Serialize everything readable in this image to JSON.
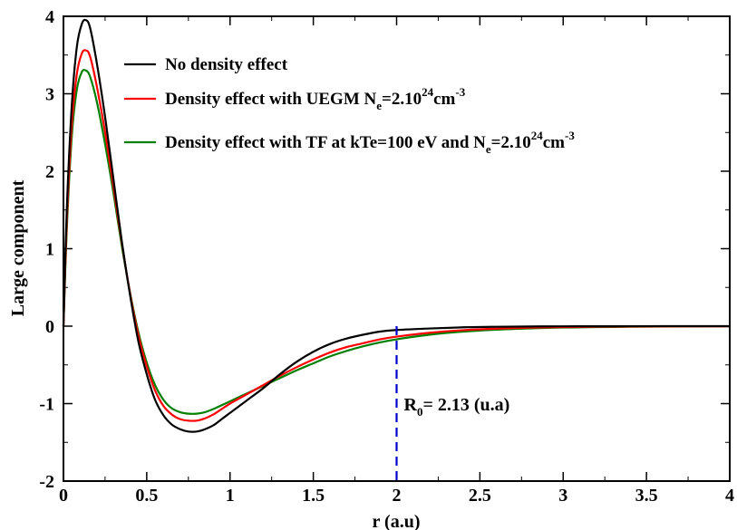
{
  "chart_data": {
    "type": "line",
    "xlabel": "r (a.u)",
    "ylabel": "Large component",
    "xlim": [
      0,
      4
    ],
    "ylim": [
      -2,
      4
    ],
    "x_ticks": [
      {
        "value": 0,
        "label": "0"
      },
      {
        "value": 0.5,
        "label": "0.5"
      },
      {
        "value": 1,
        "label": "1"
      },
      {
        "value": 1.5,
        "label": "1.5"
      },
      {
        "value": 2,
        "label": "2"
      },
      {
        "value": 2.5,
        "label": "2.5"
      },
      {
        "value": 3,
        "label": "3"
      },
      {
        "value": 3.5,
        "label": "3.5"
      },
      {
        "value": 4,
        "label": "4"
      }
    ],
    "y_ticks": [
      {
        "value": -2,
        "label": "-2"
      },
      {
        "value": -1,
        "label": "-1"
      },
      {
        "value": 0,
        "label": "0"
      },
      {
        "value": 1,
        "label": "1"
      },
      {
        "value": 2,
        "label": "2"
      },
      {
        "value": 3,
        "label": "3"
      },
      {
        "value": 4,
        "label": "4"
      }
    ],
    "grid": false,
    "legend_position": "top",
    "series": [
      {
        "legend": {
          "main": "No density effect",
          "sup1": "",
          "mid": "",
          "sup2": "",
          "tail": "",
          "sub": ""
        },
        "color": "#000000",
        "x": [
          0,
          0.02,
          0.05,
          0.08,
          0.11,
          0.135,
          0.16,
          0.2,
          0.25,
          0.3,
          0.35,
          0.4,
          0.45,
          0.5,
          0.55,
          0.6,
          0.65,
          0.7,
          0.75,
          0.8,
          0.85,
          0.9,
          0.95,
          1.0,
          1.1,
          1.2,
          1.3,
          1.4,
          1.5,
          1.6,
          1.7,
          1.8,
          1.9,
          2.0,
          2.2,
          2.4,
          2.6,
          2.8,
          3.0,
          3.3,
          3.6,
          4.0
        ],
        "y": [
          0,
          1.5,
          2.85,
          3.6,
          3.9,
          3.95,
          3.85,
          3.4,
          2.7,
          1.9,
          1.1,
          0.4,
          -0.2,
          -0.62,
          -0.95,
          -1.15,
          -1.27,
          -1.33,
          -1.36,
          -1.36,
          -1.33,
          -1.28,
          -1.2,
          -1.12,
          -0.96,
          -0.8,
          -0.62,
          -0.46,
          -0.33,
          -0.23,
          -0.16,
          -0.11,
          -0.07,
          -0.05,
          -0.03,
          -0.015,
          -0.008,
          -0.004,
          -0.002,
          -0.001,
          0,
          0
        ]
      },
      {
        "legend": {
          "main": "Density effect with UEGM N",
          "sup1": "",
          "mid": "=2.10",
          "sup2": "24",
          "tail": "cm",
          "sub": "e",
          "sup3": "-3"
        },
        "color": "#ff0000",
        "x": [
          0,
          0.02,
          0.05,
          0.08,
          0.11,
          0.135,
          0.16,
          0.2,
          0.25,
          0.3,
          0.35,
          0.4,
          0.45,
          0.5,
          0.55,
          0.6,
          0.65,
          0.7,
          0.75,
          0.8,
          0.85,
          0.9,
          0.95,
          1.0,
          1.1,
          1.2,
          1.3,
          1.4,
          1.5,
          1.6,
          1.7,
          1.8,
          1.9,
          2.0,
          2.2,
          2.4,
          2.6,
          2.8,
          3.0,
          3.3,
          3.6,
          4.0
        ],
        "y": [
          0,
          1.35,
          2.6,
          3.25,
          3.52,
          3.56,
          3.48,
          3.1,
          2.5,
          1.8,
          1.08,
          0.42,
          -0.12,
          -0.52,
          -0.83,
          -1.03,
          -1.14,
          -1.2,
          -1.22,
          -1.22,
          -1.19,
          -1.14,
          -1.07,
          -1.0,
          -0.88,
          -0.76,
          -0.64,
          -0.53,
          -0.43,
          -0.34,
          -0.27,
          -0.22,
          -0.17,
          -0.135,
          -0.085,
          -0.052,
          -0.032,
          -0.02,
          -0.012,
          -0.006,
          -0.003,
          -0.001
        ]
      },
      {
        "legend": {
          "main": "Density effect with TF at kTe=100 eV and N",
          "sup1": "",
          "mid": "=2.10",
          "sup2": "24",
          "tail": "cm",
          "sub": "e",
          "sup3": "-3"
        },
        "color": "#008000",
        "x": [
          0,
          0.02,
          0.05,
          0.08,
          0.11,
          0.135,
          0.16,
          0.2,
          0.25,
          0.3,
          0.35,
          0.4,
          0.45,
          0.5,
          0.55,
          0.6,
          0.65,
          0.7,
          0.75,
          0.8,
          0.85,
          0.9,
          0.95,
          1.0,
          1.1,
          1.2,
          1.3,
          1.4,
          1.5,
          1.6,
          1.7,
          1.8,
          1.9,
          2.0,
          2.2,
          2.4,
          2.6,
          2.8,
          3.0,
          3.3,
          3.6,
          4.0
        ],
        "y": [
          0,
          1.25,
          2.45,
          3.05,
          3.28,
          3.3,
          3.22,
          2.9,
          2.35,
          1.72,
          1.04,
          0.43,
          -0.08,
          -0.47,
          -0.76,
          -0.95,
          -1.06,
          -1.11,
          -1.13,
          -1.13,
          -1.11,
          -1.07,
          -1.02,
          -0.97,
          -0.87,
          -0.77,
          -0.67,
          -0.57,
          -0.48,
          -0.39,
          -0.32,
          -0.26,
          -0.21,
          -0.17,
          -0.11,
          -0.07,
          -0.045,
          -0.029,
          -0.018,
          -0.01,
          -0.005,
          -0.002
        ]
      }
    ],
    "annotation": {
      "main": "R",
      "sub": "0",
      "tail": "= 2.13 (u.a)",
      "x": 2.0,
      "line_color": "#0000cc"
    }
  }
}
